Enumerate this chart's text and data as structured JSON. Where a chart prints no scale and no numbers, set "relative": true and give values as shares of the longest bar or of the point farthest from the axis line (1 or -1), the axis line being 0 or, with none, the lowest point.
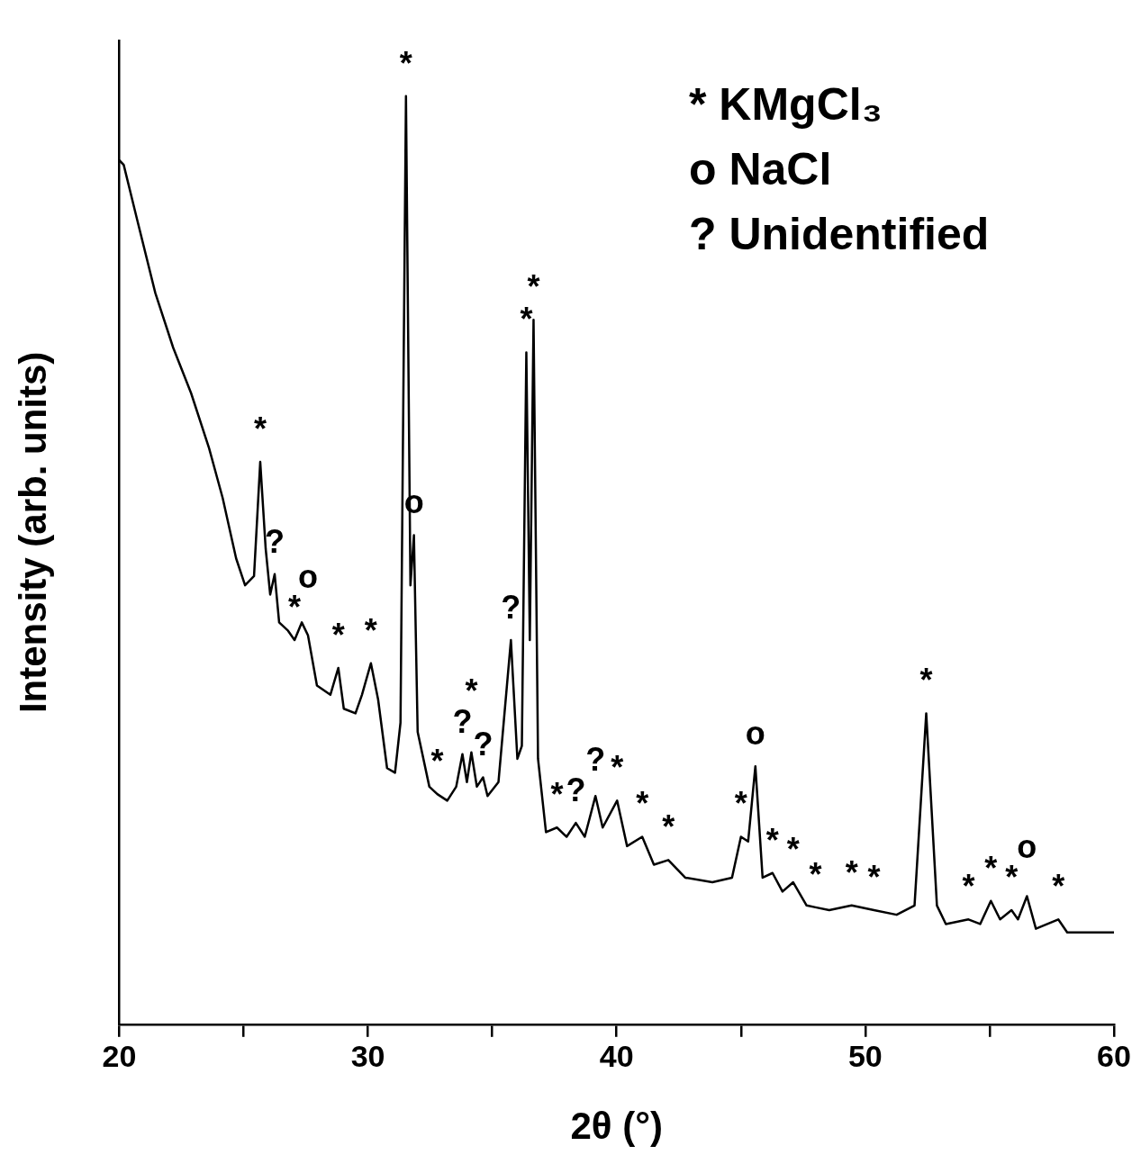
{
  "chart_data": {
    "type": "line",
    "relative": true,
    "xlabel": "2θ (°)",
    "ylabel": "Intensity (arb. units)",
    "color": "#000000",
    "marker": "none",
    "grid": false,
    "legend": false,
    "xlim": [
      20,
      60
    ],
    "xticks": [
      20,
      {
        "value": 25,
        "label": null
      },
      30,
      {
        "value": 35,
        "label": null
      },
      40,
      {
        "value": 45,
        "label": null
      },
      50,
      {
        "value": 55,
        "label": null
      },
      60
    ],
    "x": [
      20,
      20.18,
      20.72,
      21.45,
      22.17,
      22.89,
      23.61,
      24.16,
      24.7,
      25.06,
      25.42,
      25.67,
      25.89,
      26.07,
      26.25,
      26.43,
      26.79,
      27.05,
      27.34,
      27.59,
      27.95,
      28.49,
      28.81,
      29.03,
      29.5,
      29.76,
      30.12,
      30.41,
      30.77,
      31.09,
      31.31,
      31.53,
      31.71,
      31.85,
      32,
      32.47,
      32.79,
      33.19,
      33.55,
      33.8,
      33.98,
      34.16,
      34.38,
      34.63,
      34.81,
      35.25,
      35.75,
      36.01,
      36.19,
      36.37,
      36.51,
      36.66,
      36.84,
      37.16,
      37.6,
      37.99,
      38.36,
      38.72,
      39.15,
      39.44,
      40.02,
      40.42,
      41.03,
      41.5,
      42.08,
      42.76,
      43.85,
      44.64,
      45,
      45.29,
      45.58,
      45.87,
      46.27,
      46.67,
      47.1,
      47.64,
      48,
      48.55,
      49.45,
      50.35,
      51.26,
      51.98,
      52.45,
      52.88,
      53.24,
      54.15,
      54.62,
      55.05,
      55.42,
      55.88,
      56.14,
      56.5,
      56.86,
      57.76,
      58.12,
      59.02,
      60
    ],
    "values": [
      0.931,
      0.926,
      0.867,
      0.788,
      0.729,
      0.68,
      0.621,
      0.567,
      0.502,
      0.473,
      0.483,
      0.606,
      0.512,
      0.463,
      0.485,
      0.433,
      0.424,
      0.414,
      0.433,
      0.419,
      0.365,
      0.355,
      0.384,
      0.34,
      0.335,
      0.355,
      0.389,
      0.35,
      0.276,
      0.271,
      0.325,
      1,
      0.473,
      0.527,
      0.315,
      0.256,
      0.248,
      0.241,
      0.256,
      0.291,
      0.261,
      0.293,
      0.256,
      0.266,
      0.246,
      0.261,
      0.414,
      0.286,
      0.3,
      0.724,
      0.414,
      0.759,
      0.286,
      0.207,
      0.212,
      0.202,
      0.217,
      0.202,
      0.246,
      0.212,
      0.241,
      0.192,
      0.202,
      0.172,
      0.177,
      0.158,
      0.153,
      0.158,
      0.202,
      0.197,
      0.278,
      0.158,
      0.163,
      0.143,
      0.153,
      0.128,
      0.126,
      0.123,
      0.128,
      0.123,
      0.118,
      0.128,
      0.335,
      0.128,
      0.108,
      0.113,
      0.108,
      0.133,
      0.113,
      0.123,
      0.113,
      0.138,
      0.103,
      0.113,
      0.099,
      0.099,
      0.099
    ],
    "annotations": [
      "* KMgCl₃",
      "o NaCl",
      "? Unidentified",
      {
        "text": "*",
        "x": 25.67,
        "y": 0.606
      },
      {
        "text": "?",
        "x": 26.25,
        "y": 0.485
      },
      {
        "text": "*",
        "x": 27.05,
        "y": 0.414
      },
      {
        "text": "o",
        "x": 27.59,
        "y": 0.419
      },
      {
        "text": "*",
        "x": 28.81,
        "y": 0.384
      },
      {
        "text": "*",
        "x": 30.12,
        "y": 0.389
      },
      {
        "text": "*",
        "x": 31.53,
        "y": 1
      },
      {
        "text": "o",
        "x": 31.85,
        "y": 0.527
      },
      {
        "text": "*",
        "x": 32.79,
        "y": 0.248
      },
      {
        "text": "?",
        "x": 33.8,
        "y": 0.291
      },
      {
        "text": "*",
        "x": 34.16,
        "y": 0.293
      },
      {
        "text": "?",
        "x": 34.63,
        "y": 0.266
      },
      {
        "text": "?",
        "x": 35.75,
        "y": 0.414
      },
      {
        "text": "*",
        "x": 36.37,
        "y": 0.724
      },
      {
        "text": "*",
        "x": 36.66,
        "y": 0.759
      },
      {
        "text": "*",
        "x": 37.6,
        "y": 0.212
      },
      {
        "text": "?",
        "x": 38.36,
        "y": 0.217
      },
      {
        "text": "?",
        "x": 39.15,
        "y": 0.246
      },
      {
        "text": "*",
        "x": 40.02,
        "y": 0.241
      },
      {
        "text": "*",
        "x": 41.03,
        "y": 0.202
      },
      {
        "text": "*",
        "x": 42.08,
        "y": 0.177
      },
      {
        "text": "*",
        "x": 45,
        "y": 0.202
      },
      {
        "text": "o",
        "x": 45.58,
        "y": 0.278
      },
      {
        "text": "*",
        "x": 46.27,
        "y": 0.163
      },
      {
        "text": "*",
        "x": 47.1,
        "y": 0.153
      },
      {
        "text": "*",
        "x": 48,
        "y": 0.126
      },
      {
        "text": "*",
        "x": 49.45,
        "y": 0.128
      },
      {
        "text": "*",
        "x": 50.35,
        "y": 0.123
      },
      {
        "text": "*",
        "x": 52.45,
        "y": 0.335
      },
      {
        "text": "*",
        "x": 54.15,
        "y": 0.113
      },
      {
        "text": "*",
        "x": 55.05,
        "y": 0.133
      },
      {
        "text": "*",
        "x": 55.88,
        "y": 0.123
      },
      {
        "text": "o",
        "x": 56.5,
        "y": 0.138
      },
      {
        "text": "*",
        "x": 57.76,
        "y": 0.113
      }
    ]
  }
}
